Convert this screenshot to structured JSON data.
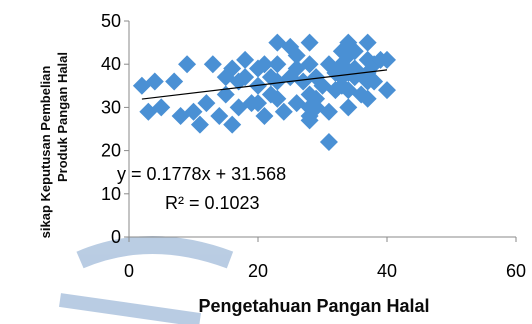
{
  "chart_data": {
    "type": "scatter",
    "title": "",
    "xlabel": "Pengetahuan Pangan Halal",
    "ylabel_lines": [
      "sikap Keputusan Pembelian",
      "Produk Pangan Halal"
    ],
    "xlim": [
      0,
      60
    ],
    "ylim": [
      0,
      50
    ],
    "x_ticks": [
      "0",
      "20",
      "40",
      "60"
    ],
    "y_ticks": [
      "0",
      "10",
      "20",
      "30",
      "40",
      "50"
    ],
    "grid": false,
    "legend": "none",
    "marker_color": "#4a90d4",
    "trendline_color": "#000000",
    "trendline": {
      "slope": 0.1778,
      "intercept": 31.568
    },
    "annotations": {
      "equation": "y = 0.1778x + 31.568",
      "r_squared": "R² = 0.1023"
    },
    "points": [
      [
        2,
        35
      ],
      [
        3,
        29
      ],
      [
        4,
        36
      ],
      [
        5,
        30
      ],
      [
        7,
        36
      ],
      [
        8,
        28
      ],
      [
        9,
        40
      ],
      [
        10,
        29
      ],
      [
        11,
        26
      ],
      [
        12,
        31
      ],
      [
        13,
        40
      ],
      [
        14,
        28
      ],
      [
        15,
        37
      ],
      [
        15,
        33
      ],
      [
        16,
        39
      ],
      [
        16,
        26
      ],
      [
        17,
        30
      ],
      [
        17,
        36
      ],
      [
        18,
        41
      ],
      [
        18,
        37
      ],
      [
        19,
        31
      ],
      [
        20,
        39
      ],
      [
        20,
        35
      ],
      [
        20,
        31
      ],
      [
        21,
        40
      ],
      [
        21,
        28
      ],
      [
        22,
        37
      ],
      [
        22,
        33
      ],
      [
        23,
        45
      ],
      [
        23,
        40
      ],
      [
        23,
        36
      ],
      [
        23,
        32
      ],
      [
        24,
        29
      ],
      [
        25,
        44
      ],
      [
        25,
        37
      ],
      [
        26,
        42
      ],
      [
        26,
        39
      ],
      [
        26,
        31
      ],
      [
        27,
        36
      ],
      [
        28,
        45
      ],
      [
        28,
        40
      ],
      [
        28,
        33
      ],
      [
        28,
        30
      ],
      [
        28,
        28
      ],
      [
        28,
        27
      ],
      [
        29,
        37
      ],
      [
        29,
        32
      ],
      [
        29,
        30
      ],
      [
        30,
        35
      ],
      [
        31,
        40
      ],
      [
        31,
        29
      ],
      [
        31,
        22
      ],
      [
        32,
        38
      ],
      [
        32,
        34
      ],
      [
        33,
        43
      ],
      [
        33,
        40
      ],
      [
        33,
        37
      ],
      [
        33,
        35
      ],
      [
        34,
        45
      ],
      [
        34,
        42
      ],
      [
        34,
        38
      ],
      [
        34,
        34
      ],
      [
        34,
        30
      ],
      [
        35,
        43
      ],
      [
        35,
        39
      ],
      [
        35,
        37
      ],
      [
        36,
        33
      ],
      [
        37,
        45
      ],
      [
        37,
        41
      ],
      [
        37,
        38
      ],
      [
        37,
        36
      ],
      [
        37,
        32
      ],
      [
        38,
        40
      ],
      [
        38,
        36
      ],
      [
        39,
        41
      ],
      [
        40,
        34
      ],
      [
        40,
        41
      ]
    ]
  }
}
